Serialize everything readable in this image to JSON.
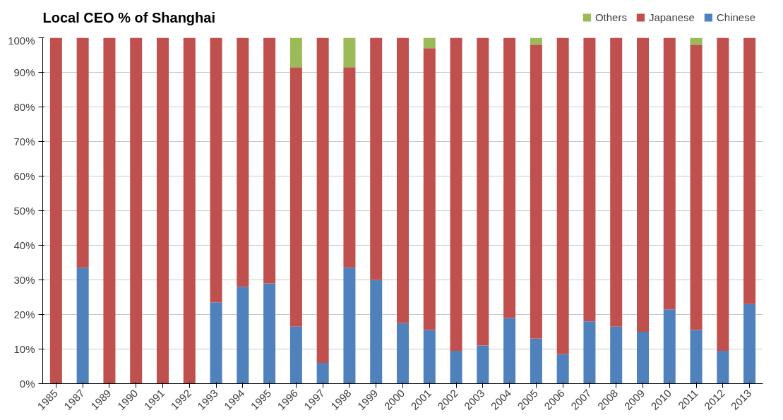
{
  "chart_data": {
    "type": "bar",
    "stacked": true,
    "title": "Local CEO % of Shanghai",
    "categories": [
      "1985",
      "1987",
      "1989",
      "1990",
      "1991",
      "1992",
      "1993",
      "1994",
      "1995",
      "1996",
      "1997",
      "1998",
      "1999",
      "2000",
      "2001",
      "2002",
      "2003",
      "2004",
      "2005",
      "2006",
      "2007",
      "2008",
      "2009",
      "2010",
      "2011",
      "2012",
      "2013"
    ],
    "series": [
      {
        "name": "Chinese",
        "color": "#4f81bd",
        "values": [
          0,
          33.5,
          0,
          0,
          0,
          0,
          23.5,
          28,
          29,
          16.5,
          6,
          33.5,
          30,
          17.5,
          15.5,
          9.5,
          11,
          19,
          13,
          8.5,
          18,
          16.5,
          15,
          21.5,
          15.5,
          9.5,
          23
        ]
      },
      {
        "name": "Japanese",
        "color": "#c0504d",
        "values": [
          100,
          66.5,
          100,
          100,
          100,
          100,
          76.5,
          72,
          71,
          75,
          94,
          58,
          70,
          82.5,
          81.5,
          90.5,
          89,
          81,
          85,
          91.5,
          82,
          83.5,
          85,
          78.5,
          82.5,
          90.5,
          77
        ]
      },
      {
        "name": "Others",
        "color": "#9bbb59",
        "values": [
          0,
          0,
          0,
          0,
          0,
          0,
          0,
          0,
          0,
          8.5,
          0,
          8.5,
          0,
          0,
          3,
          0,
          0,
          0,
          2,
          0,
          0,
          0,
          0,
          0,
          2,
          0,
          0
        ]
      }
    ],
    "ylim": [
      0,
      100
    ],
    "yticks": [
      {
        "value": 0,
        "label": "0%"
      },
      {
        "value": 10,
        "label": "10%"
      },
      {
        "value": 20,
        "label": "20%"
      },
      {
        "value": 30,
        "label": "30%"
      },
      {
        "value": 40,
        "label": "40%"
      },
      {
        "value": 50,
        "label": "50%"
      },
      {
        "value": 60,
        "label": "60%"
      },
      {
        "value": 70,
        "label": "70%"
      },
      {
        "value": 80,
        "label": "80%"
      },
      {
        "value": 90,
        "label": "90%"
      },
      {
        "value": 100,
        "label": "100%"
      }
    ],
    "grid": "y",
    "legend": "top right"
  }
}
